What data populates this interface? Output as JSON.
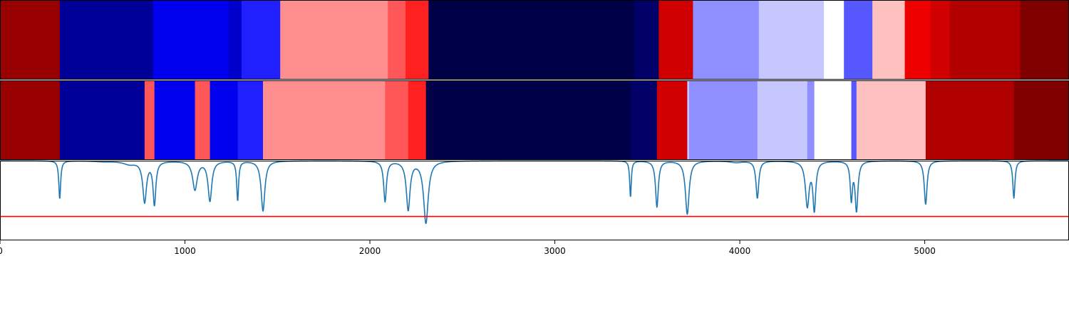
{
  "chart_data": [
    {
      "type": "heatmap",
      "title": "",
      "xlim": [
        0,
        5780
      ],
      "colormap": "seismic",
      "segments": [
        {
          "start": 0,
          "end": 323,
          "color": "#990000"
        },
        {
          "start": 323,
          "end": 827,
          "color": "#000099"
        },
        {
          "start": 827,
          "end": 1236,
          "color": "#0000ee"
        },
        {
          "start": 1236,
          "end": 1306,
          "color": "#0000cc"
        },
        {
          "start": 1306,
          "end": 1515,
          "color": "#2020ff"
        },
        {
          "start": 1515,
          "end": 2097,
          "color": "#ff8f8f"
        },
        {
          "start": 2097,
          "end": 2193,
          "color": "#ff5757"
        },
        {
          "start": 2193,
          "end": 2317,
          "color": "#ff2020"
        },
        {
          "start": 2317,
          "end": 3427,
          "color": "#000048"
        },
        {
          "start": 3427,
          "end": 3562,
          "color": "#000066"
        },
        {
          "start": 3562,
          "end": 3747,
          "color": "#d10000"
        },
        {
          "start": 3747,
          "end": 4103,
          "color": "#8f8fff"
        },
        {
          "start": 4103,
          "end": 4455,
          "color": "#c7c7ff"
        },
        {
          "start": 4455,
          "end": 4563,
          "color": "#ffffff"
        },
        {
          "start": 4563,
          "end": 4717,
          "color": "#5757ff"
        },
        {
          "start": 4717,
          "end": 4892,
          "color": "#ffc0c0"
        },
        {
          "start": 4892,
          "end": 5031,
          "color": "#ee0000"
        },
        {
          "start": 5031,
          "end": 5135,
          "color": "#d10000"
        },
        {
          "start": 5135,
          "end": 5516,
          "color": "#b00000"
        },
        {
          "start": 5516,
          "end": 5780,
          "color": "#800000"
        }
      ]
    },
    {
      "type": "heatmap",
      "title": "",
      "xlim": [
        0,
        5780
      ],
      "colormap": "seismic",
      "segments": [
        {
          "start": 0,
          "end": 323,
          "color": "#990000"
        },
        {
          "start": 323,
          "end": 782,
          "color": "#000099"
        },
        {
          "start": 782,
          "end": 835,
          "color": "#ff5757"
        },
        {
          "start": 835,
          "end": 1054,
          "color": "#0000ee"
        },
        {
          "start": 1054,
          "end": 1135,
          "color": "#ff5757"
        },
        {
          "start": 1135,
          "end": 1285,
          "color": "#0000ee"
        },
        {
          "start": 1285,
          "end": 1422,
          "color": "#2020ff"
        },
        {
          "start": 1422,
          "end": 2082,
          "color": "#ff8f8f"
        },
        {
          "start": 2082,
          "end": 2207,
          "color": "#ff5757"
        },
        {
          "start": 2207,
          "end": 2303,
          "color": "#ff2020"
        },
        {
          "start": 2303,
          "end": 3409,
          "color": "#000048"
        },
        {
          "start": 3409,
          "end": 3552,
          "color": "#000066"
        },
        {
          "start": 3552,
          "end": 3716,
          "color": "#d10000"
        },
        {
          "start": 3716,
          "end": 3726,
          "color": "#c7c7ff"
        },
        {
          "start": 3726,
          "end": 4095,
          "color": "#8f8fff"
        },
        {
          "start": 4095,
          "end": 4365,
          "color": "#c7c7ff"
        },
        {
          "start": 4365,
          "end": 4403,
          "color": "#8f8fff"
        },
        {
          "start": 4403,
          "end": 4603,
          "color": "#ffffff"
        },
        {
          "start": 4603,
          "end": 4631,
          "color": "#5757ff"
        },
        {
          "start": 4631,
          "end": 5005,
          "color": "#ffc0c0"
        },
        {
          "start": 5005,
          "end": 5482,
          "color": "#b00000"
        },
        {
          "start": 5482,
          "end": 5780,
          "color": "#800000"
        }
      ]
    },
    {
      "type": "line",
      "title": "",
      "xlabel": "",
      "ylabel": "",
      "xlim": [
        0,
        5780
      ],
      "ylim": [
        -1,
        0
      ],
      "xticks": [
        0,
        1000,
        2000,
        3000,
        4000,
        5000
      ],
      "xtick_labels": [
        "0",
        "1000",
        "2000",
        "3000",
        "4000",
        "5000"
      ],
      "grid": false,
      "threshold": 0.7,
      "threshold_color": "#ff0000",
      "series_color": "#1f77b4",
      "dips": [
        {
          "x": 323,
          "depth": 0.48,
          "width": 6
        },
        {
          "x": 560,
          "depth": 0.01,
          "width": 60
        },
        {
          "x": 700,
          "depth": 0.04,
          "width": 40
        },
        {
          "x": 782,
          "depth": 0.51,
          "width": 12
        },
        {
          "x": 835,
          "depth": 0.54,
          "width": 9
        },
        {
          "x": 1054,
          "depth": 0.36,
          "width": 15
        },
        {
          "x": 1135,
          "depth": 0.5,
          "width": 12
        },
        {
          "x": 1285,
          "depth": 0.5,
          "width": 6
        },
        {
          "x": 1422,
          "depth": 0.63,
          "width": 12
        },
        {
          "x": 2082,
          "depth": 0.51,
          "width": 9
        },
        {
          "x": 2207,
          "depth": 0.61,
          "width": 12
        },
        {
          "x": 2303,
          "depth": 0.78,
          "width": 15
        },
        {
          "x": 3409,
          "depth": 0.46,
          "width": 5
        },
        {
          "x": 3552,
          "depth": 0.58,
          "width": 9
        },
        {
          "x": 3716,
          "depth": 0.67,
          "width": 12
        },
        {
          "x": 3980,
          "depth": 0.02,
          "width": 40
        },
        {
          "x": 4095,
          "depth": 0.47,
          "width": 9
        },
        {
          "x": 4365,
          "depth": 0.56,
          "width": 12
        },
        {
          "x": 4403,
          "depth": 0.6,
          "width": 9
        },
        {
          "x": 4603,
          "depth": 0.47,
          "width": 7
        },
        {
          "x": 4631,
          "depth": 0.62,
          "width": 9
        },
        {
          "x": 5005,
          "depth": 0.55,
          "width": 9
        },
        {
          "x": 5482,
          "depth": 0.47,
          "width": 7
        }
      ]
    }
  ]
}
